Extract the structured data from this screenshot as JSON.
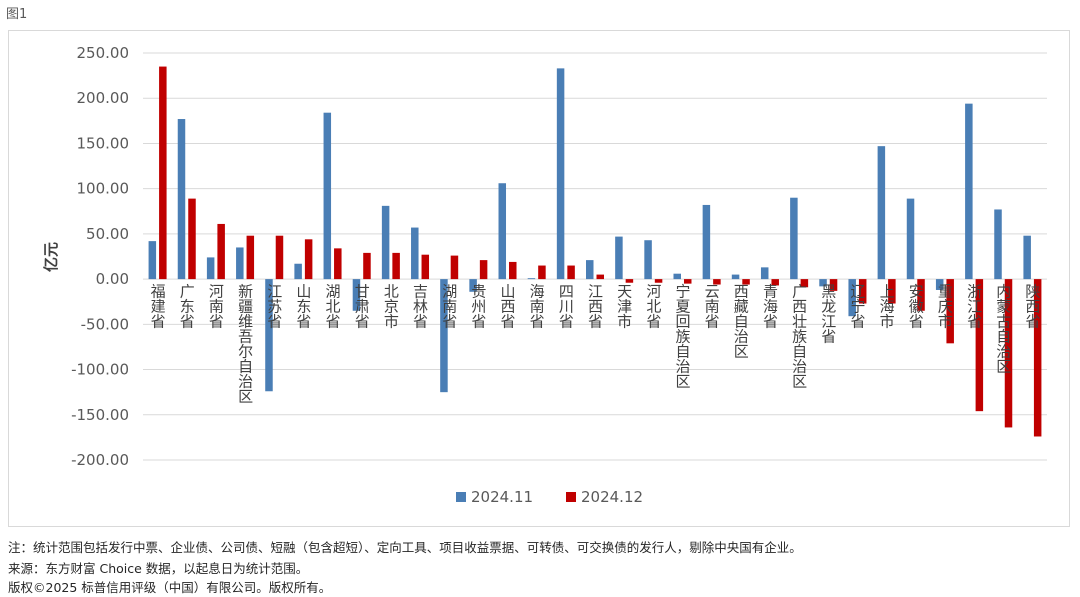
{
  "figure_label": "图1",
  "notes": {
    "scope": "注：统计范围包括发行中票、企业债、公司债、短融（包含超短）、定向工具、项目收益票据、可转债、可交换债的发行人，剔除中央国有企业。",
    "source": "来源：东方财富 Choice 数据，以起息日为统计范围。",
    "copyright": "版权©2025 标普信用评级（中国）有限公司。版权所有。"
  },
  "colors": {
    "series_2024_11": "#4a7eb5",
    "series_2024_12": "#c00000",
    "gridline": "#d9d9d9",
    "axis_text": "#595959"
  },
  "chart_data": {
    "type": "bar",
    "ylabel": "亿元",
    "ylim": [
      -200,
      250
    ],
    "yticks": [
      250,
      200,
      150,
      100,
      50,
      0,
      -50,
      -100,
      -150,
      -200
    ],
    "ytick_labels": [
      "250.00",
      "200.00",
      "150.00",
      "100.00",
      "50.00",
      "0.00",
      "-50.00",
      "-100.00",
      "-150.00",
      "-200.00"
    ],
    "grid": true,
    "legend_position": "bottom",
    "categories": [
      "福建省",
      "广东省",
      "河南省",
      "新疆维吾尔自治区",
      "江苏省",
      "山东省",
      "湖北省",
      "甘肃省",
      "北京市",
      "吉林省",
      "湖南省",
      "贵州省",
      "山西省",
      "海南省",
      "四川省",
      "江西省",
      "天津市",
      "河北省",
      "宁夏回族自治区",
      "云南省",
      "西藏自治区",
      "青海省",
      "广西壮族自治区",
      "黑龙江省",
      "辽宁省",
      "上海市",
      "安徽省",
      "重庆市",
      "浙江省",
      "内蒙古自治区",
      "陕西省"
    ],
    "series": [
      {
        "name": "2024.11",
        "values": [
          42,
          177,
          24,
          35,
          -124,
          17,
          184,
          -35,
          81,
          57,
          -125,
          -14,
          106,
          1,
          233,
          21,
          47,
          43,
          6,
          82,
          5,
          13,
          90,
          -8,
          -41,
          147,
          89,
          -12,
          194,
          77,
          48
        ]
      },
      {
        "name": "2024.12",
        "values": [
          235,
          89,
          61,
          48,
          48,
          44,
          34,
          29,
          29,
          27,
          26,
          21,
          19,
          15,
          15,
          5,
          -4,
          -4,
          -5,
          -6,
          -6,
          -7,
          -9,
          -13,
          -27,
          -27,
          -35,
          -71,
          -146,
          -164,
          -174
        ]
      }
    ]
  }
}
